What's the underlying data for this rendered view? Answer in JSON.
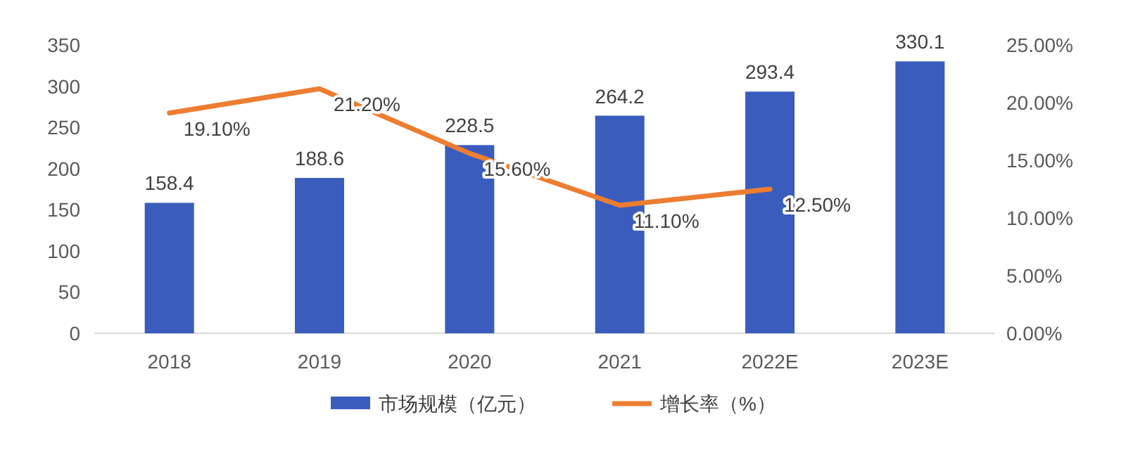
{
  "chart_data": {
    "type": "bar",
    "categories": [
      "2018",
      "2019",
      "2020",
      "2021",
      "2022E",
      "2023E"
    ],
    "series": [
      {
        "name": "市场规模（亿元）",
        "color": "#3a5dbd",
        "values": [
          158.4,
          188.6,
          228.5,
          264.2,
          293.4,
          330.1
        ],
        "value_labels": [
          "158.4",
          "188.6",
          "228.5",
          "264.2",
          "293.4",
          "330.1"
        ]
      },
      {
        "name": "增长率（%）",
        "type": "line",
        "axis": "y2",
        "color": "#ed7d31",
        "values": [
          19.1,
          21.2,
          15.6,
          11.1,
          12.5,
          null
        ],
        "value_labels": [
          "19.10%",
          "21.20%",
          "15.60%",
          "11.10%",
          "12.50%",
          null
        ]
      }
    ],
    "ylim": [
      0,
      350
    ],
    "yticks": [
      0,
      50,
      100,
      150,
      200,
      250,
      300,
      350
    ],
    "y2lim": [
      0,
      25
    ],
    "y2ticks": [
      {
        "value": 0,
        "label": "0.00%"
      },
      {
        "value": 5,
        "label": "5.00%"
      },
      {
        "value": 10,
        "label": "10.00%"
      },
      {
        "value": 15,
        "label": "15.00%"
      },
      {
        "value": 20,
        "label": "20.00%"
      },
      {
        "value": 25,
        "label": "25.00%"
      }
    ],
    "marker": "none",
    "line_style": "solid",
    "legend": "bottom"
  }
}
